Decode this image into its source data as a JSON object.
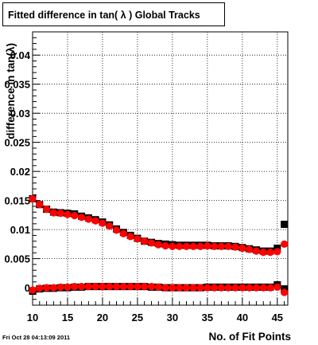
{
  "title": "Fitted difference in tan( λ )  Global Tracks",
  "timestamp": "Fri Oct 28 04:13:09 2011",
  "chart_data": {
    "type": "scatter",
    "xlabel": "No. of Fit Points",
    "ylabel": "difference in tan(λ)",
    "xlim": [
      10,
      46.5
    ],
    "ylim": [
      -0.003,
      0.044
    ],
    "x_ticks": [
      10,
      15,
      20,
      25,
      30,
      35,
      40,
      45
    ],
    "x_tick_labels": [
      "10",
      "15",
      "20",
      "25",
      "30",
      "35",
      "40",
      "45"
    ],
    "y_ticks": [
      0,
      0.005,
      0.01,
      0.015,
      0.02,
      0.025,
      0.03,
      0.035,
      0.04
    ],
    "y_tick_labels": [
      "0",
      "0.005",
      "0.01",
      "0.015",
      "0.02",
      "0.025",
      "0.03",
      "0.035",
      "0.04"
    ],
    "grid": true,
    "colors": {
      "black_series": "#000000",
      "red_series": "#ff0000"
    },
    "x": [
      10,
      11,
      12,
      13,
      14,
      15,
      16,
      17,
      18,
      19,
      20,
      21,
      22,
      23,
      24,
      25,
      26,
      27,
      28,
      29,
      30,
      31,
      32,
      33,
      34,
      35,
      36,
      37,
      38,
      39,
      40,
      41,
      42,
      43,
      44,
      45,
      46
    ],
    "series": [
      {
        "color": "black",
        "marker": "square",
        "values": [
          0.0153,
          0.0143,
          0.0135,
          0.013,
          0.0129,
          0.0128,
          0.0127,
          0.0123,
          0.012,
          0.0117,
          0.0113,
          0.0108,
          0.0101,
          0.0095,
          0.009,
          0.0085,
          0.008,
          0.0078,
          0.0076,
          0.0075,
          0.0074,
          0.0073,
          0.0073,
          0.0073,
          0.0073,
          0.0073,
          0.0072,
          0.0072,
          0.0072,
          0.0071,
          0.0069,
          0.0067,
          0.0065,
          0.0063,
          0.0063,
          0.0068,
          0.0109
        ]
      },
      {
        "color": "red",
        "marker": "circle",
        "values": [
          0.0153,
          0.0143,
          0.0135,
          0.0129,
          0.0128,
          0.0126,
          0.0124,
          0.0121,
          0.0118,
          0.0115,
          0.0111,
          0.0106,
          0.0099,
          0.0093,
          0.0088,
          0.0084,
          0.008,
          0.0077,
          0.0074,
          0.0072,
          0.0071,
          0.0071,
          0.0071,
          0.0071,
          0.0071,
          0.0072,
          0.0071,
          0.0071,
          0.0071,
          0.007,
          0.0068,
          0.0066,
          0.0063,
          0.0061,
          0.0061,
          0.0062,
          0.0075
        ]
      },
      {
        "color": "black",
        "marker": "square",
        "values": [
          -0.0006,
          -0.0002,
          -0.0001,
          -0.0001,
          0.0,
          0.0,
          0.0001,
          0.0001,
          0.0002,
          0.0002,
          0.0002,
          0.0002,
          0.0002,
          0.0002,
          0.0002,
          0.0002,
          0.0002,
          0.0001,
          0.0001,
          0.0,
          0.0,
          0.0,
          0.0,
          0.0,
          0.0,
          0.0001,
          0.0001,
          0.0001,
          0.0001,
          0.0001,
          0.0001,
          0.0001,
          0.0001,
          0.0001,
          0.0001,
          0.0005,
          -0.0002
        ]
      },
      {
        "color": "red",
        "marker": "circle",
        "values": [
          -0.0004,
          -0.0001,
          0.0,
          0.0,
          0.0001,
          0.0001,
          0.0002,
          0.0002,
          0.0002,
          0.0002,
          0.0002,
          0.0002,
          0.0002,
          0.0002,
          0.0002,
          0.0002,
          0.0002,
          0.0002,
          0.0001,
          0.0,
          0.0,
          0.0,
          0.0,
          0.0,
          0.0,
          0.0,
          0.0,
          0.0,
          0.0,
          0.0,
          0.0,
          0.0,
          0.0,
          0.0,
          0.0,
          0.0001,
          -0.0008
        ]
      }
    ]
  }
}
